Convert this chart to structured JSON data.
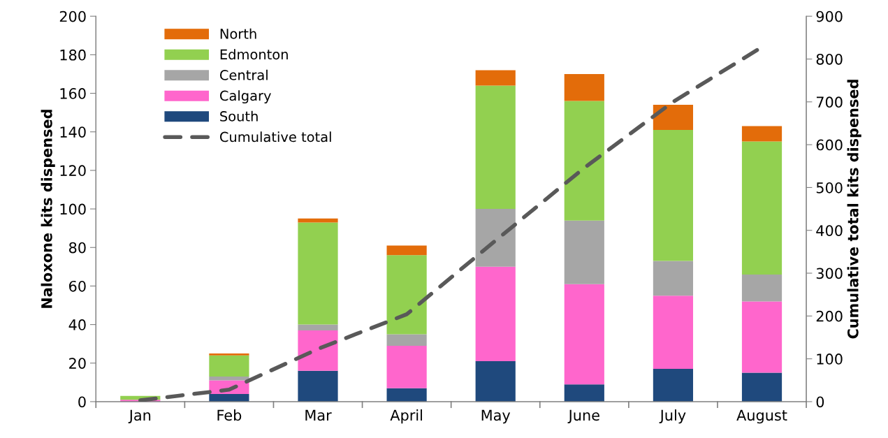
{
  "chart_data": {
    "type": "bar",
    "stacked": true,
    "ylabel": "Naloxone kits dispensed",
    "y2label": "Cumulative total kits dispensed",
    "categories": [
      "Jan",
      "Feb",
      "Mar",
      "April",
      "May",
      "June",
      "July",
      "August"
    ],
    "series": [
      {
        "name": "South",
        "color": "#1f497d",
        "values": [
          0,
          4,
          16,
          7,
          21,
          9,
          17,
          15
        ]
      },
      {
        "name": "Calgary",
        "color": "#ff66cc",
        "values": [
          1,
          7,
          21,
          22,
          49,
          52,
          38,
          37
        ]
      },
      {
        "name": "Central",
        "color": "#a6a6a6",
        "values": [
          0,
          2,
          3,
          6,
          30,
          33,
          18,
          14
        ]
      },
      {
        "name": "Edmonton",
        "color": "#92d050",
        "values": [
          2,
          11,
          53,
          41,
          64,
          62,
          68,
          69
        ]
      },
      {
        "name": "North",
        "color": "#e36c0a",
        "values": [
          0,
          1,
          2,
          5,
          8,
          14,
          13,
          8
        ]
      },
      {
        "name": "Cumulative total",
        "type": "line",
        "axis": "y2",
        "color": "#595959",
        "line_style": "dashed",
        "values": [
          3,
          28,
          123,
          204,
          376,
          546,
          700,
          828
        ]
      }
    ],
    "ylim": [
      0,
      200
    ],
    "yticks": [
      0,
      20,
      40,
      60,
      80,
      100,
      120,
      140,
      160,
      180,
      200
    ],
    "y2lim": [
      0,
      900
    ],
    "y2ticks": [
      0,
      100,
      200,
      300,
      400,
      500,
      600,
      700,
      800,
      900
    ],
    "grid": false,
    "legend": "top left"
  }
}
